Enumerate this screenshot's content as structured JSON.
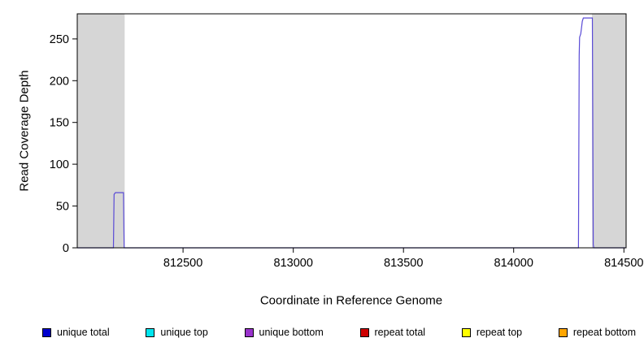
{
  "chart_data": {
    "type": "line",
    "title": "",
    "xlabel": "Coordinate in Reference Genome",
    "ylabel": "Read Coverage Depth",
    "xlim": [
      812020,
      814510
    ],
    "ylim": [
      0,
      280
    ],
    "xticks": [
      812500,
      813000,
      813500,
      814000,
      814500
    ],
    "yticks": [
      0,
      50,
      100,
      150,
      200,
      250
    ],
    "grid": false,
    "legend_position": "bottom",
    "background": "#ffffff",
    "shaded_regions": [
      {
        "name": "left-flank",
        "x0": 812020,
        "x1": 812235,
        "color": "#d6d6d6"
      },
      {
        "name": "right-flank",
        "x0": 814355,
        "x1": 814510,
        "color": "#d6d6d6"
      }
    ],
    "series": [
      {
        "name": "unique coverage",
        "color": "#5a4bd6",
        "points": [
          [
            812020,
            0
          ],
          [
            812184,
            0
          ],
          [
            812187,
            64
          ],
          [
            812193,
            66
          ],
          [
            812230,
            66
          ],
          [
            812233,
            0
          ],
          [
            814294,
            0
          ],
          [
            814297,
            230
          ],
          [
            814299,
            252
          ],
          [
            814304,
            256
          ],
          [
            814307,
            262
          ],
          [
            814311,
            271
          ],
          [
            814316,
            275
          ],
          [
            814357,
            275
          ],
          [
            814361,
            4
          ],
          [
            814363,
            0
          ],
          [
            814507,
            0
          ]
        ]
      }
    ],
    "legend": [
      {
        "label": "unique total",
        "color": "#0000cd"
      },
      {
        "label": "unique top",
        "color": "#00e5ee"
      },
      {
        "label": "unique bottom",
        "color": "#9932cc"
      },
      {
        "label": "repeat total",
        "color": "#cd0000"
      },
      {
        "label": "repeat top",
        "color": "#ffff00"
      },
      {
        "label": "repeat bottom",
        "color": "#ffa500"
      }
    ]
  }
}
